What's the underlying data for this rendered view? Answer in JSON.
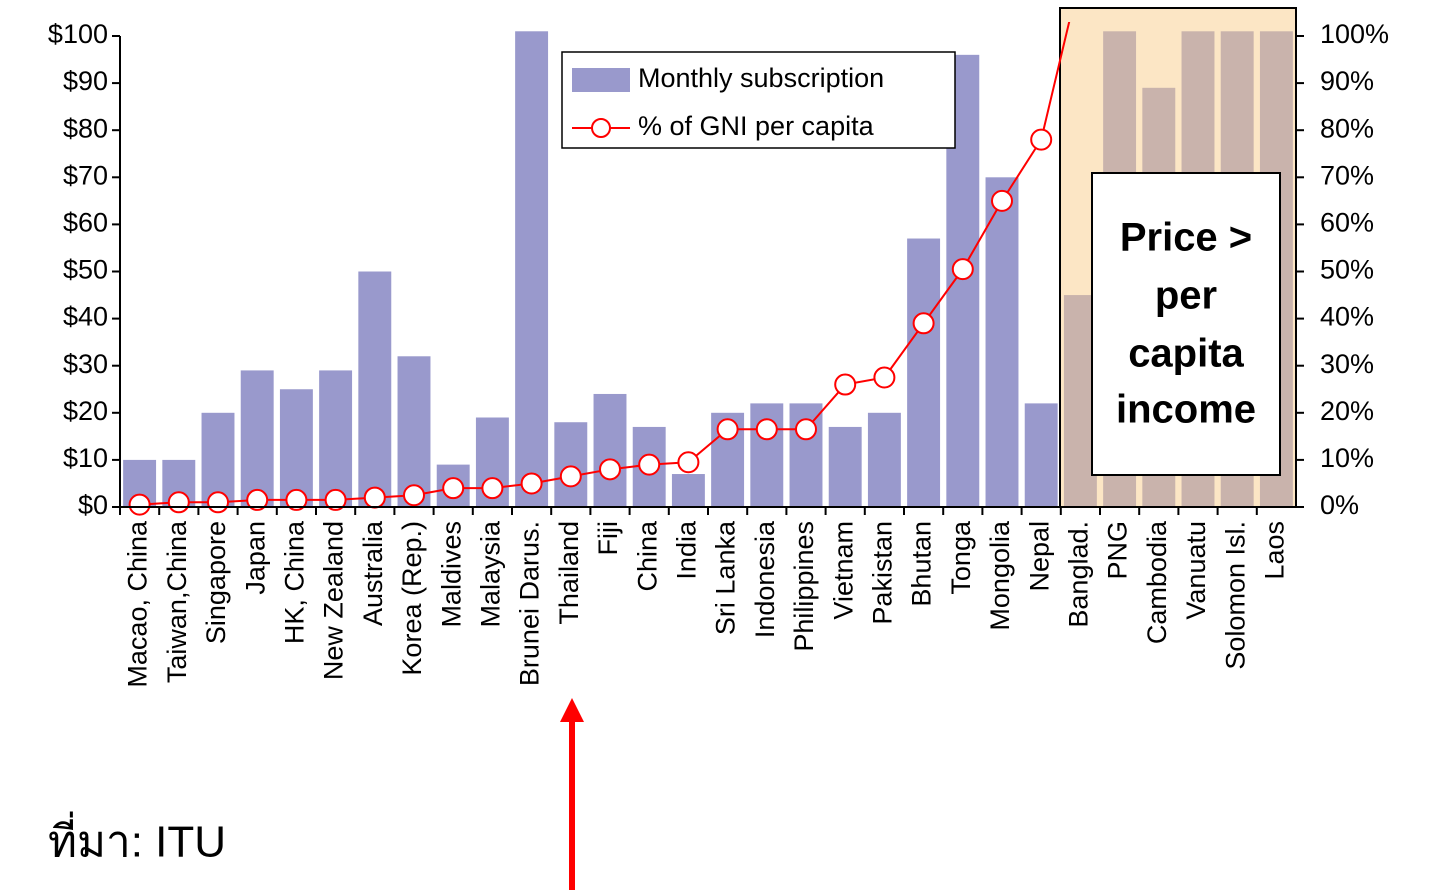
{
  "chart_data": {
    "type": "bar-line",
    "categories": [
      "Macao, China",
      "Taiwan,China",
      "Singapore",
      "Japan",
      "HK, China",
      "New Zealand",
      "Australia",
      "Korea (Rep.)",
      "Maldives",
      "Malaysia",
      "Brunei Darus.",
      "Thailand",
      "Fiji",
      "China",
      "India",
      "Sri Lanka",
      "Indonesia",
      "Philippines",
      "Vietnam",
      "Pakistan",
      "Bhutan",
      "Tonga",
      "Mongolia",
      "Nepal",
      "Banglad.",
      "PNG",
      "Cambodia",
      "Vanuatu",
      "Solomon Isl.",
      "Laos"
    ],
    "series": [
      {
        "name": "Monthly subscription",
        "type": "bar",
        "color": "#9999cc",
        "values": [
          10,
          10,
          20,
          29,
          25,
          29,
          50,
          32,
          9,
          19,
          101,
          18,
          24,
          17,
          7,
          20,
          22,
          22,
          17,
          20,
          57,
          96,
          70,
          22,
          45,
          101,
          89,
          101,
          101,
          101
        ]
      },
      {
        "name": "% of GNI per capita",
        "type": "line",
        "axis": "y2",
        "color": "#ff0000",
        "values": [
          0.5,
          1,
          1,
          1.5,
          1.5,
          1.5,
          2,
          2.5,
          4,
          4,
          5,
          6.5,
          8,
          9,
          9.5,
          16.5,
          16.5,
          16.5,
          26,
          27.5,
          39,
          50.5,
          65,
          78,
          113,
          null,
          null,
          null,
          null,
          null
        ]
      }
    ],
    "ylim": [
      0,
      100
    ],
    "yticks": [
      {
        "value": 0,
        "label": "$0"
      },
      {
        "value": 10,
        "label": "$10"
      },
      {
        "value": 20,
        "label": "$20"
      },
      {
        "value": 30,
        "label": "$30"
      },
      {
        "value": 40,
        "label": "$40"
      },
      {
        "value": 50,
        "label": "$50"
      },
      {
        "value": 60,
        "label": "$60"
      },
      {
        "value": 70,
        "label": "$70"
      },
      {
        "value": 80,
        "label": "$80"
      },
      {
        "value": 90,
        "label": "$90"
      },
      {
        "value": 100,
        "label": "$100"
      }
    ],
    "y2lim": [
      0,
      100
    ],
    "y2ticks": [
      {
        "value": 0,
        "label": "0%"
      },
      {
        "value": 10,
        "label": "10%"
      },
      {
        "value": 20,
        "label": "20%"
      },
      {
        "value": 30,
        "label": "30%"
      },
      {
        "value": 40,
        "label": "40%"
      },
      {
        "value": 50,
        "label": "50%"
      },
      {
        "value": 60,
        "label": "60%"
      },
      {
        "value": 70,
        "label": "70%"
      },
      {
        "value": 80,
        "label": "80%"
      },
      {
        "value": 90,
        "label": "90%"
      },
      {
        "value": 100,
        "label": "100%"
      }
    ],
    "annotations": [
      "Price >",
      "per",
      "capita",
      "income"
    ],
    "source": "ที่มา: ITU"
  }
}
